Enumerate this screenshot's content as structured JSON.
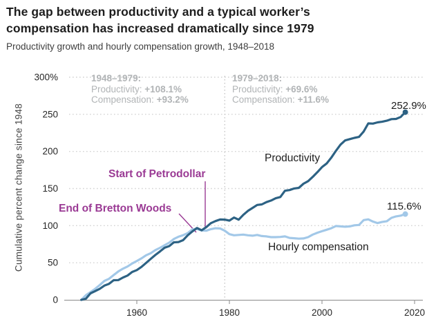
{
  "header": {
    "title_line1": "The gap between productivity and a typical worker’s",
    "title_line2": "compensation has increased dramatically since 1979",
    "subtitle": "Productivity growth and hourly compensation growth, 1948–2018"
  },
  "annotations": {
    "period1": {
      "heading": "1948–1979:",
      "productivity_label": "Productivity: ",
      "productivity_value": "+108.1%",
      "compensation_label": "Compensation: ",
      "compensation_value": "+93.2%"
    },
    "period2": {
      "heading": "1979–2018:",
      "productivity_label": "Productivity: ",
      "productivity_value": "+69.6%",
      "compensation_label": "Compensation: ",
      "compensation_value": "+11.6%"
    },
    "petrodollar": "Start of Petrodollar",
    "bretton_woods": "End of Bretton Woods"
  },
  "colors": {
    "ink": "#1d1d1d",
    "gray": "#b1b4b6",
    "purple": "#9a3a94",
    "grid": "#d2d2d2",
    "axis": "#9b9b9b",
    "vline": "#c9c9c9",
    "navy": "#2d6284",
    "lightblue": "#a2c8e8"
  },
  "chart_data": {
    "type": "line",
    "title": "The gap between productivity and a typical worker’s compensation has increased dramatically since 1979",
    "subtitle": "Productivity growth and hourly compensation growth, 1948–2018",
    "xlabel": "",
    "ylabel": "Cumulative percent change since 1948",
    "ylim": [
      0,
      300
    ],
    "xlim": [
      1946,
      2021
    ],
    "y_ticks": [
      0,
      50,
      100,
      150,
      200,
      250,
      300
    ],
    "y_tick_labels": [
      "0",
      "50",
      "100",
      "150",
      "200",
      "250",
      "300%"
    ],
    "x_ticks": [
      1960,
      1980,
      2000,
      2020
    ],
    "x_tick_labels": [
      "1960",
      "1980",
      "2000",
      "2020"
    ],
    "vline_year": 1979,
    "grid": "dotted horizontal gridlines at each 50%",
    "legend_position": "inline labels on lines",
    "years": [
      1948,
      1949,
      1950,
      1951,
      1952,
      1953,
      1954,
      1955,
      1956,
      1957,
      1958,
      1959,
      1960,
      1961,
      1962,
      1963,
      1964,
      1965,
      1966,
      1967,
      1968,
      1969,
      1970,
      1971,
      1972,
      1973,
      1974,
      1975,
      1976,
      1977,
      1978,
      1979,
      1980,
      1981,
      1982,
      1983,
      1984,
      1985,
      1986,
      1987,
      1988,
      1989,
      1990,
      1991,
      1992,
      1993,
      1994,
      1995,
      1996,
      1997,
      1998,
      1999,
      2000,
      2001,
      2002,
      2003,
      2004,
      2005,
      2006,
      2007,
      2008,
      2009,
      2010,
      2011,
      2012,
      2013,
      2014,
      2015,
      2016,
      2017,
      2018
    ],
    "series": [
      {
        "name": "Productivity",
        "color": "#2d6284",
        "end_label": "252.9%",
        "values": [
          0,
          1.6,
          8.8,
          11.8,
          15.0,
          19.2,
          21.6,
          26.5,
          26.7,
          30.1,
          32.8,
          37.6,
          40.1,
          44.4,
          49.8,
          55.2,
          60.5,
          65.2,
          70.2,
          72.4,
          77.6,
          77.9,
          80.4,
          87.0,
          92.2,
          96.9,
          93.7,
          98.0,
          103.4,
          106.2,
          108.3,
          108.1,
          106.8,
          110.9,
          108.0,
          114.5,
          119.9,
          123.9,
          127.9,
          128.6,
          131.7,
          133.8,
          136.9,
          138.6,
          147.0,
          148.0,
          150.1,
          150.9,
          156.5,
          159.9,
          165.7,
          172.0,
          178.9,
          183.7,
          191.5,
          200.7,
          209.2,
          214.8,
          216.6,
          218.3,
          219.6,
          226.8,
          237.8,
          237.5,
          239.2,
          240.0,
          241.4,
          243.5,
          243.8,
          246.4,
          252.9
        ]
      },
      {
        "name": "Hourly compensation",
        "color": "#a2c8e8",
        "end_label": "115.6%",
        "values": [
          0,
          6.3,
          10.5,
          14.9,
          20.0,
          25.5,
          28.4,
          33.4,
          38.3,
          42.0,
          45.0,
          49.0,
          52.4,
          55.9,
          60.1,
          62.9,
          67.1,
          70.1,
          73.6,
          77.1,
          82.0,
          85.1,
          87.1,
          90.0,
          95.0,
          95.6,
          93.4,
          93.2,
          95.3,
          96.5,
          96.2,
          93.2,
          88.5,
          87.0,
          87.5,
          88.0,
          87.0,
          86.5,
          87.5,
          86.0,
          85.5,
          84.5,
          84.5,
          84.8,
          85.5,
          83.5,
          83.0,
          82.5,
          82.8,
          84.5,
          88.0,
          90.5,
          92.5,
          94.5,
          96.5,
          99.5,
          99.0,
          98.5,
          99.0,
          100.5,
          101.0,
          107.5,
          108.5,
          105.5,
          103.5,
          105.0,
          106.0,
          110.5,
          112.5,
          113.5,
          115.6
        ]
      }
    ]
  }
}
